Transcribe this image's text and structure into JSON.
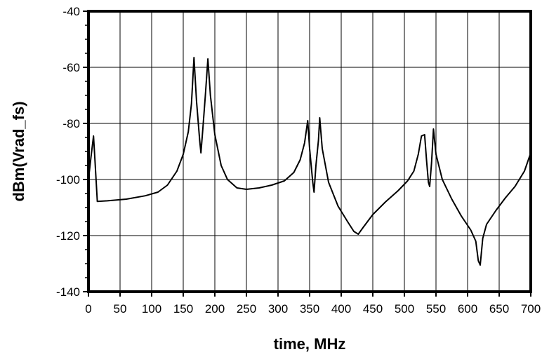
{
  "chart_data": {
    "type": "line",
    "xlabel": "time, MHz",
    "ylabel": "dBm(Vrad_fs)",
    "xlim": [
      0,
      700
    ],
    "ylim": [
      -140,
      -40
    ],
    "xticks": [
      0,
      50,
      100,
      150,
      200,
      250,
      300,
      350,
      400,
      450,
      500,
      550,
      600,
      650,
      700
    ],
    "yticks": [
      -40,
      -60,
      -80,
      -100,
      -120,
      -140
    ],
    "grid": true,
    "series": [
      {
        "color": "#000000",
        "points": [
          [
            0,
            -100
          ],
          [
            4,
            -92
          ],
          [
            8,
            -84.5
          ],
          [
            10,
            -92
          ],
          [
            14,
            -107.8
          ],
          [
            30,
            -107.6
          ],
          [
            60,
            -107
          ],
          [
            90,
            -105.8
          ],
          [
            110,
            -104.5
          ],
          [
            125,
            -102
          ],
          [
            140,
            -97
          ],
          [
            150,
            -91
          ],
          [
            158,
            -83
          ],
          [
            163,
            -73
          ],
          [
            167,
            -56.5
          ],
          [
            171,
            -72
          ],
          [
            176,
            -86
          ],
          [
            178,
            -90.5
          ],
          [
            181,
            -82
          ],
          [
            185,
            -70
          ],
          [
            189,
            -57
          ],
          [
            193,
            -70
          ],
          [
            200,
            -84
          ],
          [
            210,
            -95
          ],
          [
            220,
            -100
          ],
          [
            235,
            -103
          ],
          [
            250,
            -103.5
          ],
          [
            270,
            -103
          ],
          [
            290,
            -102
          ],
          [
            310,
            -100.5
          ],
          [
            325,
            -97.5
          ],
          [
            335,
            -93
          ],
          [
            342,
            -87
          ],
          [
            347,
            -79
          ],
          [
            350,
            -89
          ],
          [
            355,
            -101
          ],
          [
            357,
            -104.5
          ],
          [
            360,
            -95
          ],
          [
            364,
            -86
          ],
          [
            366,
            -78
          ],
          [
            370,
            -89
          ],
          [
            380,
            -101
          ],
          [
            395,
            -109.5
          ],
          [
            410,
            -115
          ],
          [
            420,
            -118.5
          ],
          [
            427,
            -119.5
          ],
          [
            435,
            -117
          ],
          [
            450,
            -112.5
          ],
          [
            470,
            -108
          ],
          [
            490,
            -104
          ],
          [
            505,
            -100.5
          ],
          [
            515,
            -97
          ],
          [
            522,
            -91
          ],
          [
            527,
            -84.5
          ],
          [
            532,
            -84
          ],
          [
            535,
            -93
          ],
          [
            538,
            -101
          ],
          [
            540,
            -102.5
          ],
          [
            543,
            -94
          ],
          [
            546,
            -82
          ],
          [
            550,
            -91
          ],
          [
            560,
            -100
          ],
          [
            575,
            -107
          ],
          [
            590,
            -113
          ],
          [
            605,
            -118
          ],
          [
            613,
            -122
          ],
          [
            617,
            -129
          ],
          [
            620,
            -130.5
          ],
          [
            624,
            -121
          ],
          [
            630,
            -116
          ],
          [
            645,
            -111
          ],
          [
            660,
            -106.5
          ],
          [
            675,
            -102.5
          ],
          [
            690,
            -97
          ],
          [
            700,
            -90.5
          ]
        ]
      }
    ]
  }
}
